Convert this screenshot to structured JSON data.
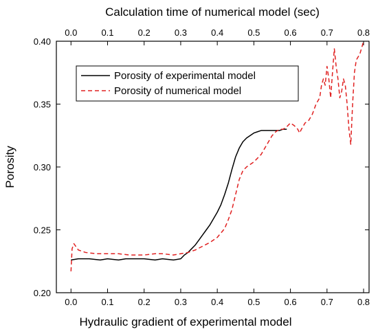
{
  "chart_data": {
    "type": "line",
    "title": "",
    "xlabel": "Hydraulic gradient of experimental model",
    "x2label": "Calculation time of numerical model (sec)",
    "ylabel": "Porosity",
    "xlim": [
      -0.04,
      0.815
    ],
    "x2lim": [
      -0.04,
      0.815
    ],
    "ylim": [
      0.2,
      0.4
    ],
    "xticks": [
      "0.0",
      "0.1",
      "0.2",
      "0.3",
      "0.4",
      "0.5",
      "0.6",
      "0.7",
      "0.8"
    ],
    "x2ticks": [
      "0.0",
      "0.1",
      "0.2",
      "0.3",
      "0.4",
      "0.5",
      "0.6",
      "0.7",
      "0.8"
    ],
    "yticks": [
      "0.20",
      "0.25",
      "0.30",
      "0.35",
      "0.40"
    ],
    "legend": {
      "position": "upper-left"
    },
    "grid": false,
    "series": [
      {
        "name": "Porosity of experimental model",
        "color": "#000000",
        "style": "solid",
        "x": [
          0.0,
          0.02,
          0.05,
          0.08,
          0.1,
          0.13,
          0.15,
          0.18,
          0.2,
          0.23,
          0.25,
          0.28,
          0.3,
          0.31,
          0.32,
          0.33,
          0.34,
          0.35,
          0.36,
          0.37,
          0.38,
          0.39,
          0.4,
          0.41,
          0.42,
          0.43,
          0.44,
          0.45,
          0.46,
          0.47,
          0.48,
          0.49,
          0.5,
          0.51,
          0.52,
          0.53,
          0.54,
          0.55,
          0.56,
          0.57,
          0.58,
          0.59
        ],
        "y": [
          0.226,
          0.227,
          0.227,
          0.226,
          0.227,
          0.226,
          0.227,
          0.227,
          0.227,
          0.226,
          0.227,
          0.226,
          0.227,
          0.23,
          0.232,
          0.235,
          0.238,
          0.242,
          0.246,
          0.25,
          0.254,
          0.259,
          0.264,
          0.27,
          0.278,
          0.287,
          0.298,
          0.308,
          0.315,
          0.32,
          0.323,
          0.325,
          0.327,
          0.328,
          0.329,
          0.329,
          0.329,
          0.329,
          0.329,
          0.329,
          0.33,
          0.33
        ]
      },
      {
        "name": "Porosity of numerical model",
        "color": "#e02020",
        "style": "dashed",
        "x": [
          0.0,
          0.003,
          0.008,
          0.02,
          0.04,
          0.07,
          0.1,
          0.13,
          0.16,
          0.2,
          0.23,
          0.25,
          0.28,
          0.3,
          0.32,
          0.34,
          0.36,
          0.38,
          0.4,
          0.42,
          0.43,
          0.44,
          0.45,
          0.46,
          0.47,
          0.48,
          0.5,
          0.52,
          0.53,
          0.54,
          0.55,
          0.56,
          0.57,
          0.58,
          0.59,
          0.6,
          0.61,
          0.62,
          0.625,
          0.63,
          0.64,
          0.65,
          0.66,
          0.67,
          0.68,
          0.685,
          0.69,
          0.695,
          0.7,
          0.705,
          0.71,
          0.715,
          0.72,
          0.725,
          0.73,
          0.735,
          0.74,
          0.745,
          0.75,
          0.755,
          0.76,
          0.765,
          0.77,
          0.775,
          0.78,
          0.79,
          0.8
        ],
        "y": [
          0.217,
          0.235,
          0.239,
          0.234,
          0.232,
          0.231,
          0.231,
          0.231,
          0.23,
          0.23,
          0.231,
          0.231,
          0.23,
          0.231,
          0.232,
          0.234,
          0.237,
          0.24,
          0.244,
          0.251,
          0.258,
          0.266,
          0.278,
          0.29,
          0.297,
          0.3,
          0.304,
          0.31,
          0.315,
          0.32,
          0.325,
          0.328,
          0.33,
          0.33,
          0.332,
          0.335,
          0.333,
          0.33,
          0.327,
          0.33,
          0.335,
          0.337,
          0.342,
          0.35,
          0.355,
          0.365,
          0.37,
          0.365,
          0.38,
          0.37,
          0.355,
          0.375,
          0.394,
          0.38,
          0.37,
          0.355,
          0.36,
          0.37,
          0.365,
          0.35,
          0.33,
          0.318,
          0.35,
          0.375,
          0.385,
          0.39,
          0.4
        ]
      }
    ]
  }
}
